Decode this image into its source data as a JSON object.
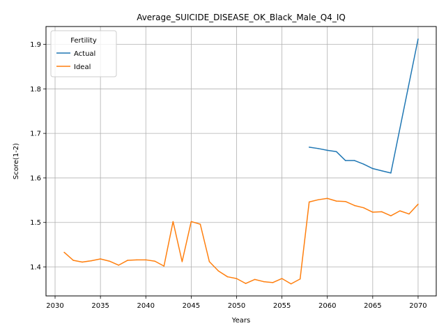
{
  "chart_data": {
    "type": "line",
    "title": "Average_SUICIDE_DISEASE_OK_Black_Male_Q4_IQ",
    "xlabel": "Years",
    "ylabel": "Score(1-2)",
    "xlim": [
      2029,
      2072
    ],
    "ylim": [
      1.335,
      1.94
    ],
    "xticks": [
      2030,
      2035,
      2040,
      2045,
      2050,
      2055,
      2060,
      2065,
      2070
    ],
    "yticks": [
      1.4,
      1.5,
      1.6,
      1.7,
      1.8,
      1.9
    ],
    "xtick_labels": [
      "2030",
      "2035",
      "2040",
      "2045",
      "2050",
      "2055",
      "2060",
      "2065",
      "2070"
    ],
    "ytick_labels": [
      "1.4",
      "1.5",
      "1.6",
      "1.7",
      "1.8",
      "1.9"
    ],
    "grid": true,
    "legend": {
      "title": "Fertility",
      "placement": "top-left"
    },
    "series": [
      {
        "name": "Actual",
        "color": "#1f77b4",
        "x": [
          2058,
          2059,
          2060,
          2061,
          2062,
          2063,
          2064,
          2065,
          2066,
          2067,
          2070
        ],
        "y": [
          1.669,
          1.666,
          1.662,
          1.659,
          1.639,
          1.639,
          1.631,
          1.621,
          1.616,
          1.611,
          1.912
        ]
      },
      {
        "name": "Ideal",
        "color": "#ff7f0e",
        "x": [
          2031,
          2032,
          2033,
          2034,
          2035,
          2036,
          2037,
          2038,
          2039,
          2040,
          2041,
          2042,
          2043,
          2044,
          2045,
          2046,
          2047,
          2048,
          2049,
          2050,
          2051,
          2052,
          2053,
          2054,
          2055,
          2056,
          2057,
          2058,
          2059,
          2060,
          2061,
          2062,
          2063,
          2064,
          2065,
          2066,
          2067,
          2068,
          2069,
          2070
        ],
        "y": [
          1.433,
          1.415,
          1.411,
          1.414,
          1.418,
          1.413,
          1.404,
          1.415,
          1.416,
          1.416,
          1.413,
          1.402,
          1.502,
          1.412,
          1.502,
          1.496,
          1.412,
          1.391,
          1.378,
          1.374,
          1.363,
          1.372,
          1.367,
          1.365,
          1.374,
          1.362,
          1.373,
          1.546,
          1.551,
          1.554,
          1.548,
          1.547,
          1.538,
          1.533,
          1.523,
          1.524,
          1.515,
          1.526,
          1.519,
          1.541
        ]
      }
    ]
  }
}
